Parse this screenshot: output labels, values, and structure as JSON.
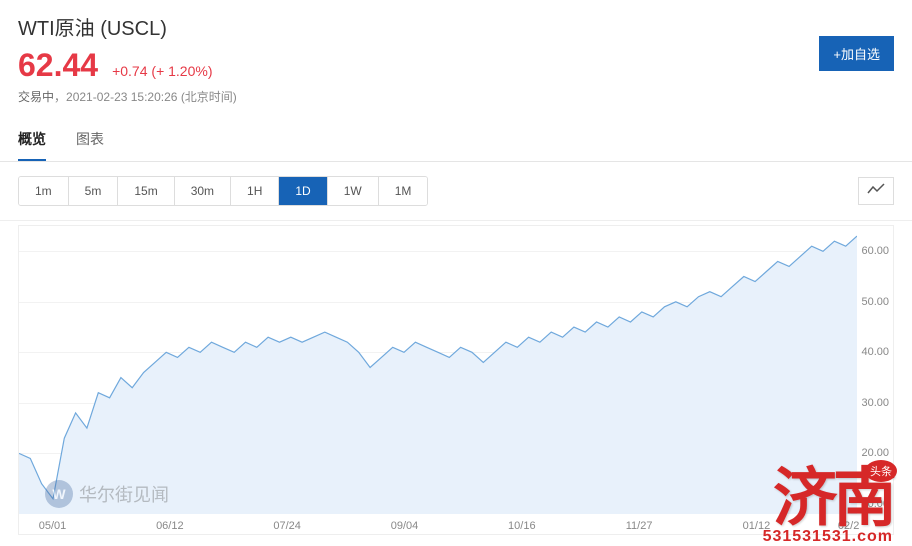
{
  "header": {
    "title": "WTI原油 (USCL)",
    "price": "62.44",
    "change": "+0.74",
    "pct": "(+ 1.20%)",
    "status_tag": "交易中",
    "status_sep": "，",
    "timestamp": "2021-02-23 15:20:26",
    "tz": "(北京时间)",
    "add_btn": "+加自选"
  },
  "tabs": {
    "items": [
      "概览",
      "图表"
    ],
    "active": 0
  },
  "timeframes": {
    "items": [
      "1m",
      "5m",
      "15m",
      "30m",
      "1H",
      "1D",
      "1W",
      "1M"
    ],
    "active": 5
  },
  "chart": {
    "type": "area",
    "line_color": "#6fa8dc",
    "fill_color": "#e8f1fb",
    "grid_color": "#f2f2f2",
    "background_color": "#ffffff",
    "label_color": "#888888",
    "label_fontsize": 11,
    "ylim": [
      8,
      65
    ],
    "yticks": [
      10,
      20,
      30,
      40,
      50,
      60
    ],
    "xticks": [
      "05/01",
      "06/12",
      "07/24",
      "09/04",
      "10/16",
      "11/27",
      "01/12",
      "02/2"
    ],
    "x_positions_pct": [
      4,
      18,
      32,
      46,
      60,
      74,
      88,
      99
    ],
    "series": [
      20,
      19,
      14,
      11,
      23,
      28,
      25,
      32,
      31,
      35,
      33,
      36,
      38,
      40,
      39,
      41,
      40,
      42,
      41,
      40,
      42,
      41,
      43,
      42,
      43,
      42,
      43,
      44,
      43,
      42,
      40,
      37,
      39,
      41,
      40,
      42,
      41,
      40,
      39,
      41,
      40,
      38,
      40,
      42,
      41,
      43,
      42,
      44,
      43,
      45,
      44,
      46,
      45,
      47,
      46,
      48,
      47,
      49,
      50,
      49,
      51,
      52,
      51,
      53,
      55,
      54,
      56,
      58,
      57,
      59,
      61,
      60,
      62,
      61,
      63
    ]
  },
  "watermark": {
    "initial": "W",
    "text": "华尔街见闻"
  },
  "stamp": {
    "big": "济南",
    "badge": "头条",
    "url": "531531531.com"
  }
}
